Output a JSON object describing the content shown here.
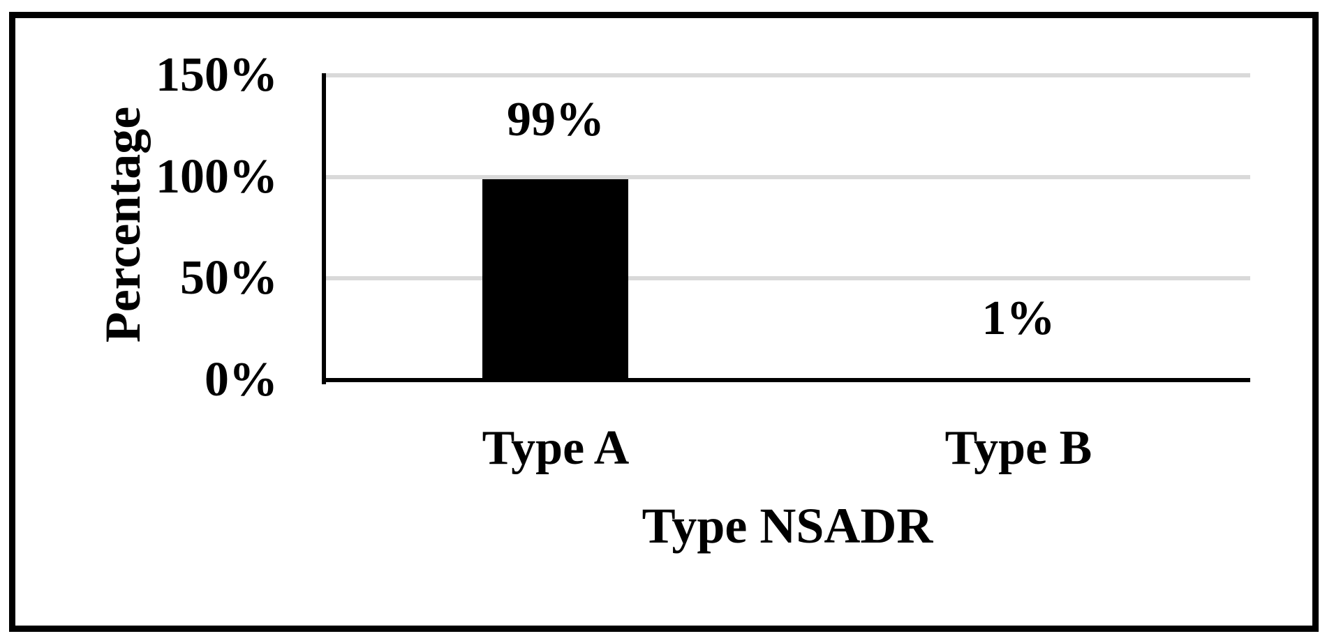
{
  "chart_data": {
    "type": "bar",
    "title": "",
    "categories": [
      "Type A",
      "Type B"
    ],
    "values": [
      99,
      1
    ],
    "data_labels": [
      "99%",
      "1%"
    ],
    "xlabel": "Type NSADR",
    "ylabel": "Percentage",
    "y_ticks": [
      {
        "label": "150%",
        "value": 150
      },
      {
        "label": "100%",
        "value": 100
      },
      {
        "label": "50%",
        "value": 50
      },
      {
        "label": "0%",
        "value": 0
      }
    ],
    "ylim": [
      0,
      150
    ],
    "grid": true,
    "legend": null,
    "bar_color": "#000000",
    "gridline_color": "#d9d9d9",
    "axis_color": "#000000",
    "frame_color": "#000000",
    "background_color": "#ffffff"
  }
}
